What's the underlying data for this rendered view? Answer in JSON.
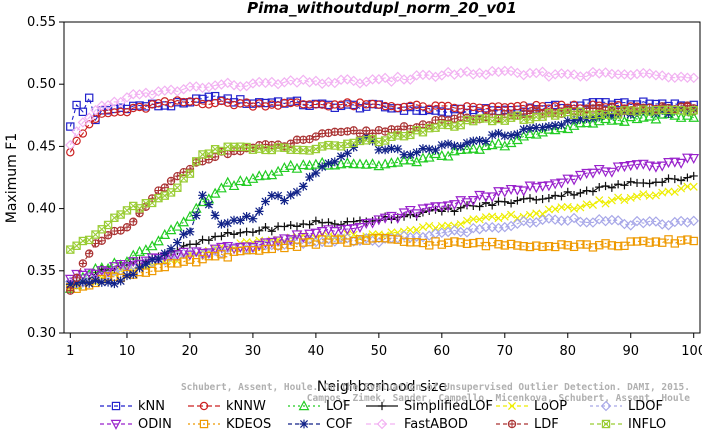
{
  "chart_data": {
    "type": "line",
    "title": "Pima_withoutdupl_norm_20_v01",
    "xlabel": "Neighborhood size",
    "ylabel": "Maximum F1",
    "xlim": [
      0,
      101
    ],
    "ylim": [
      0.3,
      0.55
    ],
    "xticks": [
      1,
      10,
      20,
      30,
      40,
      50,
      60,
      70,
      80,
      90,
      100
    ],
    "yticks": [
      "0.30",
      "0.35",
      "0.40",
      "0.45",
      "0.50",
      "0.55"
    ],
    "grid": false,
    "legend_position": "bottom",
    "watermark": [
      "Schubert, Assent, Houle. On the Evaluation of Unsupervised Outlier Detection. DAMI, 2015.",
      "Campos, Zimek, Sander, Campello, Micenkova, Schubert, Assent, Houle"
    ],
    "series": [
      {
        "name": "kNN",
        "color": "#2222cc",
        "marker": "square",
        "dash": "4,3",
        "keypoints": [
          [
            1,
            0.465
          ],
          [
            2,
            0.483
          ],
          [
            3,
            0.478
          ],
          [
            4,
            0.49
          ],
          [
            5,
            0.47
          ],
          [
            6,
            0.478
          ],
          [
            10,
            0.482
          ],
          [
            15,
            0.483
          ],
          [
            20,
            0.484
          ],
          [
            22,
            0.49
          ],
          [
            25,
            0.488
          ],
          [
            30,
            0.485
          ],
          [
            35,
            0.486
          ],
          [
            40,
            0.483
          ],
          [
            50,
            0.482
          ],
          [
            60,
            0.478
          ],
          [
            70,
            0.479
          ],
          [
            80,
            0.482
          ],
          [
            85,
            0.485
          ],
          [
            90,
            0.485
          ],
          [
            95,
            0.483
          ],
          [
            100,
            0.483
          ]
        ]
      },
      {
        "name": "kNNW",
        "color": "#cc2222",
        "marker": "circle",
        "dash": "6,3",
        "keypoints": [
          [
            1,
            0.447
          ],
          [
            2,
            0.455
          ],
          [
            3,
            0.461
          ],
          [
            4,
            0.466
          ],
          [
            5,
            0.472
          ],
          [
            6,
            0.476
          ],
          [
            8,
            0.477
          ],
          [
            10,
            0.478
          ],
          [
            15,
            0.484
          ],
          [
            20,
            0.486
          ],
          [
            25,
            0.485
          ],
          [
            30,
            0.484
          ],
          [
            40,
            0.484
          ],
          [
            50,
            0.483
          ],
          [
            60,
            0.481
          ],
          [
            70,
            0.481
          ],
          [
            80,
            0.482
          ],
          [
            90,
            0.481
          ],
          [
            95,
            0.48
          ],
          [
            100,
            0.48
          ]
        ]
      },
      {
        "name": "LOF",
        "color": "#22cc22",
        "marker": "triangle",
        "dash": "2,3",
        "keypoints": [
          [
            1,
            0.336
          ],
          [
            5,
            0.35
          ],
          [
            10,
            0.358
          ],
          [
            15,
            0.375
          ],
          [
            20,
            0.395
          ],
          [
            25,
            0.418
          ],
          [
            30,
            0.423
          ],
          [
            35,
            0.432
          ],
          [
            40,
            0.436
          ],
          [
            45,
            0.437
          ],
          [
            50,
            0.435
          ],
          [
            55,
            0.438
          ],
          [
            60,
            0.443
          ],
          [
            65,
            0.447
          ],
          [
            70,
            0.452
          ],
          [
            75,
            0.46
          ],
          [
            80,
            0.466
          ],
          [
            85,
            0.47
          ],
          [
            90,
            0.472
          ],
          [
            95,
            0.474
          ],
          [
            100,
            0.475
          ]
        ]
      },
      {
        "name": "SimplifiedLOF",
        "color": "#111111",
        "marker": "plus",
        "dash": "none",
        "keypoints": [
          [
            1,
            0.336
          ],
          [
            5,
            0.348
          ],
          [
            10,
            0.355
          ],
          [
            15,
            0.362
          ],
          [
            20,
            0.37
          ],
          [
            25,
            0.378
          ],
          [
            30,
            0.382
          ],
          [
            35,
            0.385
          ],
          [
            40,
            0.389
          ],
          [
            45,
            0.388
          ],
          [
            50,
            0.392
          ],
          [
            55,
            0.395
          ],
          [
            60,
            0.398
          ],
          [
            65,
            0.402
          ],
          [
            70,
            0.405
          ],
          [
            75,
            0.408
          ],
          [
            80,
            0.412
          ],
          [
            85,
            0.416
          ],
          [
            90,
            0.42
          ],
          [
            95,
            0.423
          ],
          [
            100,
            0.425
          ]
        ]
      },
      {
        "name": "LoOP",
        "color": "#eeee00",
        "marker": "x",
        "dash": "4,3",
        "keypoints": [
          [
            1,
            0.338
          ],
          [
            5,
            0.342
          ],
          [
            10,
            0.35
          ],
          [
            15,
            0.356
          ],
          [
            20,
            0.362
          ],
          [
            25,
            0.368
          ],
          [
            30,
            0.372
          ],
          [
            35,
            0.375
          ],
          [
            40,
            0.378
          ],
          [
            45,
            0.378
          ],
          [
            50,
            0.378
          ],
          [
            55,
            0.383
          ],
          [
            60,
            0.387
          ],
          [
            65,
            0.39
          ],
          [
            70,
            0.393
          ],
          [
            75,
            0.396
          ],
          [
            80,
            0.4
          ],
          [
            85,
            0.405
          ],
          [
            90,
            0.409
          ],
          [
            95,
            0.413
          ],
          [
            100,
            0.417
          ]
        ]
      },
      {
        "name": "LDOF",
        "color": "#a8a8e8",
        "marker": "diamond",
        "dash": "3,3",
        "keypoints": [
          [
            1,
            0.34
          ],
          [
            5,
            0.345
          ],
          [
            10,
            0.352
          ],
          [
            15,
            0.358
          ],
          [
            20,
            0.363
          ],
          [
            25,
            0.366
          ],
          [
            30,
            0.369
          ],
          [
            35,
            0.372
          ],
          [
            40,
            0.374
          ],
          [
            45,
            0.375
          ],
          [
            50,
            0.374
          ],
          [
            55,
            0.377
          ],
          [
            60,
            0.38
          ],
          [
            65,
            0.383
          ],
          [
            70,
            0.386
          ],
          [
            75,
            0.39
          ],
          [
            80,
            0.392
          ],
          [
            85,
            0.39
          ],
          [
            90,
            0.388
          ],
          [
            95,
            0.388
          ],
          [
            100,
            0.389
          ]
        ]
      },
      {
        "name": "ODIN",
        "color": "#9922cc",
        "marker": "invtriangle",
        "dash": "4,3",
        "keypoints": [
          [
            1,
            0.345
          ],
          [
            5,
            0.348
          ],
          [
            10,
            0.355
          ],
          [
            15,
            0.36
          ],
          [
            20,
            0.364
          ],
          [
            25,
            0.368
          ],
          [
            30,
            0.371
          ],
          [
            35,
            0.375
          ],
          [
            40,
            0.381
          ],
          [
            45,
            0.385
          ],
          [
            50,
            0.39
          ],
          [
            55,
            0.397
          ],
          [
            60,
            0.402
          ],
          [
            65,
            0.408
          ],
          [
            70,
            0.413
          ],
          [
            75,
            0.418
          ],
          [
            80,
            0.424
          ],
          [
            85,
            0.43
          ],
          [
            90,
            0.433
          ],
          [
            95,
            0.436
          ],
          [
            100,
            0.44
          ]
        ]
      },
      {
        "name": "KDEOS",
        "color": "#ee9900",
        "marker": "square",
        "dash": "2,3",
        "keypoints": [
          [
            1,
            0.335
          ],
          [
            5,
            0.342
          ],
          [
            10,
            0.347
          ],
          [
            15,
            0.352
          ],
          [
            20,
            0.357
          ],
          [
            25,
            0.362
          ],
          [
            30,
            0.366
          ],
          [
            35,
            0.37
          ],
          [
            40,
            0.373
          ],
          [
            45,
            0.374
          ],
          [
            50,
            0.375
          ],
          [
            55,
            0.373
          ],
          [
            60,
            0.372
          ],
          [
            65,
            0.372
          ],
          [
            70,
            0.371
          ],
          [
            75,
            0.371
          ],
          [
            80,
            0.371
          ],
          [
            85,
            0.37
          ],
          [
            90,
            0.372
          ],
          [
            95,
            0.373
          ],
          [
            100,
            0.375
          ]
        ]
      },
      {
        "name": "COF",
        "color": "#112288",
        "marker": "star",
        "dash": "4,3",
        "keypoints": [
          [
            1,
            0.34
          ],
          [
            5,
            0.342
          ],
          [
            8,
            0.34
          ],
          [
            10,
            0.345
          ],
          [
            15,
            0.36
          ],
          [
            20,
            0.383
          ],
          [
            22,
            0.41
          ],
          [
            25,
            0.387
          ],
          [
            28,
            0.392
          ],
          [
            30,
            0.392
          ],
          [
            33,
            0.411
          ],
          [
            35,
            0.406
          ],
          [
            38,
            0.418
          ],
          [
            40,
            0.43
          ],
          [
            45,
            0.443
          ],
          [
            48,
            0.458
          ],
          [
            50,
            0.449
          ],
          [
            55,
            0.444
          ],
          [
            60,
            0.45
          ],
          [
            65,
            0.453
          ],
          [
            70,
            0.46
          ],
          [
            75,
            0.464
          ],
          [
            80,
            0.47
          ],
          [
            85,
            0.474
          ],
          [
            90,
            0.477
          ],
          [
            95,
            0.478
          ],
          [
            100,
            0.479
          ]
        ]
      },
      {
        "name": "FastABOD",
        "color": "#f2b2f2",
        "marker": "diamond",
        "dash": "5,3",
        "keypoints": [
          [
            1,
            0.45
          ],
          [
            2,
            0.46
          ],
          [
            3,
            0.468
          ],
          [
            5,
            0.48
          ],
          [
            8,
            0.485
          ],
          [
            10,
            0.49
          ],
          [
            15,
            0.493
          ],
          [
            20,
            0.497
          ],
          [
            25,
            0.499
          ],
          [
            30,
            0.5
          ],
          [
            35,
            0.501
          ],
          [
            40,
            0.502
          ],
          [
            45,
            0.502
          ],
          [
            50,
            0.503
          ],
          [
            55,
            0.505
          ],
          [
            60,
            0.508
          ],
          [
            65,
            0.509
          ],
          [
            70,
            0.509
          ],
          [
            75,
            0.508
          ],
          [
            80,
            0.508
          ],
          [
            85,
            0.508
          ],
          [
            90,
            0.508
          ],
          [
            95,
            0.507
          ],
          [
            100,
            0.507
          ]
        ]
      },
      {
        "name": "LDF",
        "color": "#aa3333",
        "marker": "circleplus",
        "dash": "4,3",
        "keypoints": [
          [
            1,
            0.336
          ],
          [
            3,
            0.355
          ],
          [
            5,
            0.37
          ],
          [
            7,
            0.378
          ],
          [
            9,
            0.382
          ],
          [
            10,
            0.385
          ],
          [
            12,
            0.395
          ],
          [
            15,
            0.413
          ],
          [
            18,
            0.425
          ],
          [
            20,
            0.433
          ],
          [
            22,
            0.44
          ],
          [
            25,
            0.444
          ],
          [
            30,
            0.449
          ],
          [
            35,
            0.451
          ],
          [
            40,
            0.458
          ],
          [
            45,
            0.461
          ],
          [
            50,
            0.462
          ],
          [
            55,
            0.466
          ],
          [
            60,
            0.47
          ],
          [
            65,
            0.473
          ],
          [
            70,
            0.475
          ],
          [
            75,
            0.477
          ],
          [
            80,
            0.478
          ],
          [
            85,
            0.479
          ],
          [
            90,
            0.48
          ],
          [
            95,
            0.481
          ],
          [
            100,
            0.482
          ]
        ]
      },
      {
        "name": "INFLO",
        "color": "#99cc33",
        "marker": "boxx",
        "dash": "4,3",
        "keypoints": [
          [
            1,
            0.368
          ],
          [
            3,
            0.372
          ],
          [
            5,
            0.38
          ],
          [
            8,
            0.393
          ],
          [
            10,
            0.4
          ],
          [
            12,
            0.402
          ],
          [
            15,
            0.408
          ],
          [
            18,
            0.418
          ],
          [
            20,
            0.428
          ],
          [
            22,
            0.445
          ],
          [
            25,
            0.448
          ],
          [
            30,
            0.449
          ],
          [
            35,
            0.447
          ],
          [
            40,
            0.448
          ],
          [
            45,
            0.452
          ],
          [
            50,
            0.455
          ],
          [
            55,
            0.46
          ],
          [
            60,
            0.466
          ],
          [
            65,
            0.47
          ],
          [
            70,
            0.472
          ],
          [
            75,
            0.474
          ],
          [
            80,
            0.476
          ],
          [
            85,
            0.477
          ],
          [
            90,
            0.478
          ],
          [
            95,
            0.478
          ],
          [
            100,
            0.479
          ]
        ]
      }
    ]
  }
}
